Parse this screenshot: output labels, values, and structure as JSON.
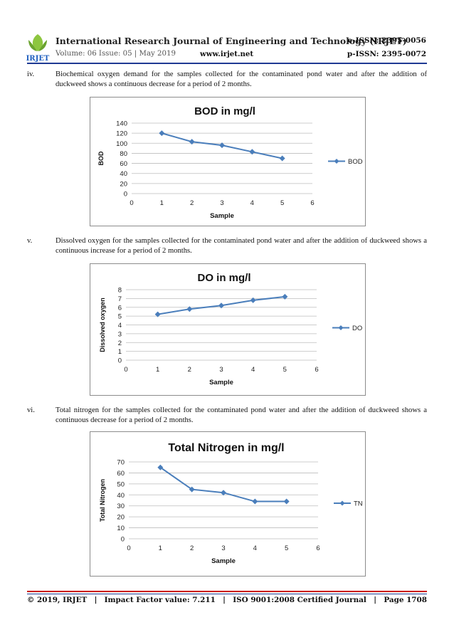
{
  "header": {
    "logo_text": "IRJET",
    "journal_title": "International Research Journal of Engineering and Technology (IRJET)",
    "eissn": "e-ISSN: 2395-0056",
    "volume": "Volume: 06 Issue: 05 | May 2019",
    "website": "www.irjet.net",
    "pissn": "p-ISSN: 2395-0072"
  },
  "paragraphs": [
    {
      "num": "iv.",
      "text": "Biochemical oxygen demand for the samples collected for the contaminated pond water and after the addition of duckweed shows a continuous decrease for a period of 2 months."
    },
    {
      "num": "v.",
      "text": "Dissolved oxygen for the samples collected for the contaminated pond water and after the addition of duckweed shows a continuous increase for a period of 2 months."
    },
    {
      "num": "vi.",
      "text": "Total nitrogen for the samples collected for the contaminated pond water and after the addition of duckweed shows a continuous decrease for a period of 2 months."
    }
  ],
  "chart_data": [
    {
      "type": "line",
      "title": "BOD in mg/l",
      "xlabel": "Sample",
      "ylabel": "BOD",
      "xlim": [
        0,
        6
      ],
      "ylim": [
        0,
        140
      ],
      "xticks": [
        0,
        1,
        2,
        3,
        4,
        5,
        6
      ],
      "yticks": [
        0,
        20,
        40,
        60,
        80,
        100,
        120,
        140
      ],
      "grid": true,
      "legend": "right",
      "series": [
        {
          "name": "BOD",
          "color": "#4a7ebb",
          "x": [
            1,
            2,
            3,
            4,
            5
          ],
          "y": [
            120,
            103,
            96,
            83,
            70
          ]
        }
      ]
    },
    {
      "type": "line",
      "title": "DO in mg/l",
      "xlabel": "Sample",
      "ylabel": "Dissolved oxygen",
      "xlim": [
        0,
        6
      ],
      "ylim": [
        0,
        8
      ],
      "xticks": [
        0,
        1,
        2,
        3,
        4,
        5,
        6
      ],
      "yticks": [
        0,
        1,
        2,
        3,
        4,
        5,
        6,
        7,
        8
      ],
      "grid": true,
      "legend": "right",
      "series": [
        {
          "name": "DO",
          "color": "#4a7ebb",
          "x": [
            1,
            2,
            3,
            4,
            5
          ],
          "y": [
            5.2,
            5.8,
            6.2,
            6.8,
            7.2
          ]
        }
      ]
    },
    {
      "type": "line",
      "title": "Total Nitrogen in mg/l",
      "xlabel": "Sample",
      "ylabel": "Total Nitrogen",
      "xlim": [
        0,
        6
      ],
      "ylim": [
        0,
        70
      ],
      "xticks": [
        0,
        1,
        2,
        3,
        4,
        5,
        6
      ],
      "yticks": [
        0,
        10,
        20,
        30,
        40,
        50,
        60,
        70
      ],
      "grid": true,
      "legend": "right",
      "series": [
        {
          "name": "TN",
          "color": "#4a7ebb",
          "x": [
            1,
            2,
            3,
            4,
            5
          ],
          "y": [
            65,
            45,
            42,
            34,
            34
          ]
        }
      ]
    }
  ],
  "footer": {
    "copyright": "© 2019, IRJET",
    "sep": "|",
    "impact": "Impact Factor value: 7.211",
    "iso": "ISO 9001:2008 Certified Journal",
    "page": "Page 1708"
  }
}
